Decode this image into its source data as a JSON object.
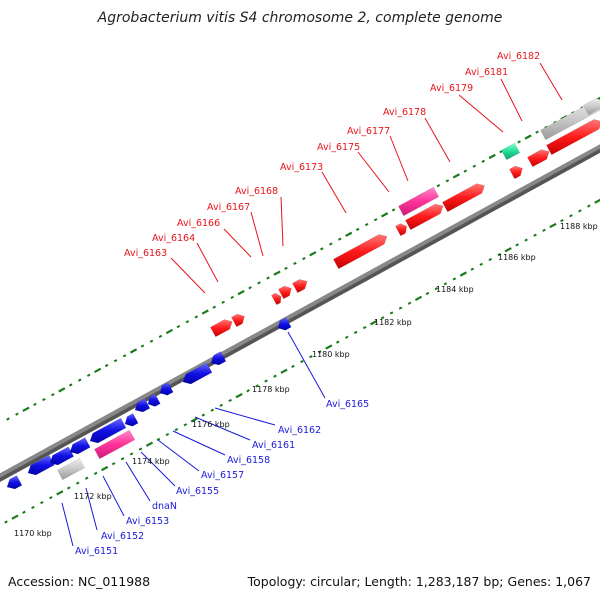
{
  "title": "Agrobacterium vitis S4 chromosome 2, complete genome",
  "footer": {
    "accession": "Accession: NC_011988",
    "topology": "Topology: circular;",
    "length": "Length: 1,283,187 bp;",
    "genes": "Genes: 1,067"
  },
  "colors": {
    "forward_gene": "#ff1a1a",
    "reverse_gene": "#1111e6",
    "rna_gene": "#ff3399",
    "pseudo_gene": "#c8c8c8",
    "other_gene": "#22dd99",
    "backbone": "#888888",
    "ticks": "#1a7a1a",
    "forward_label": "#e8141b",
    "reverse_label": "#1a1ad8"
  },
  "scale_labels": [
    "1170 kbp",
    "1172 kbp",
    "1174 kbp",
    "1176 kbp",
    "1178 kbp",
    "1180 kbp",
    "1182 kbp",
    "1184 kbp",
    "1186 kbp",
    "1188 kbp"
  ],
  "forward_labels": [
    "Avi_6163",
    "Avi_6164",
    "Avi_6166",
    "Avi_6167",
    "Avi_6168",
    "Avi_6173",
    "Avi_6175",
    "Avi_6177",
    "Avi_6178",
    "Avi_6179",
    "Avi_6181",
    "Avi_6182"
  ],
  "reverse_labels": [
    "Avi_6151",
    "Avi_6152",
    "Avi_6153",
    "dnaN",
    "Avi_6155",
    "Avi_6157",
    "Avi_6158",
    "Avi_6161",
    "Avi_6162",
    "Avi_6165"
  ]
}
